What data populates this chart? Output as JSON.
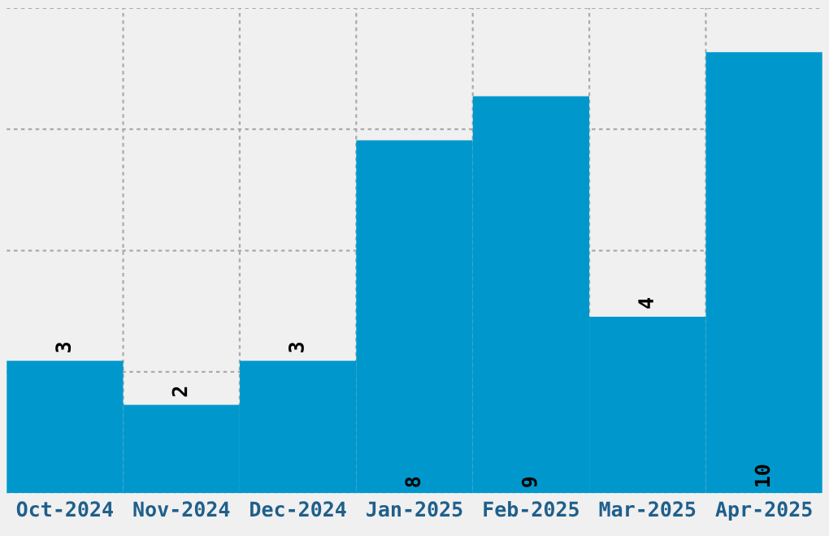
{
  "chart_data": {
    "type": "bar",
    "categories": [
      "Oct-2024",
      "Nov-2024",
      "Dec-2024",
      "Jan-2025",
      "Feb-2025",
      "Mar-2025",
      "Apr-2025"
    ],
    "values": [
      3,
      2,
      3,
      8,
      9,
      4,
      10
    ],
    "color": "#0098cc",
    "ylim": [
      0,
      11
    ],
    "yticks": [
      {
        "value": 0,
        "label": null
      },
      {
        "value": 2.75,
        "label": null
      },
      {
        "value": 5.5,
        "label": null
      },
      {
        "value": 8.25,
        "label": null
      },
      {
        "value": 11,
        "label": null
      }
    ],
    "tick_labels": "x",
    "grid": true,
    "data_labels": true
  }
}
